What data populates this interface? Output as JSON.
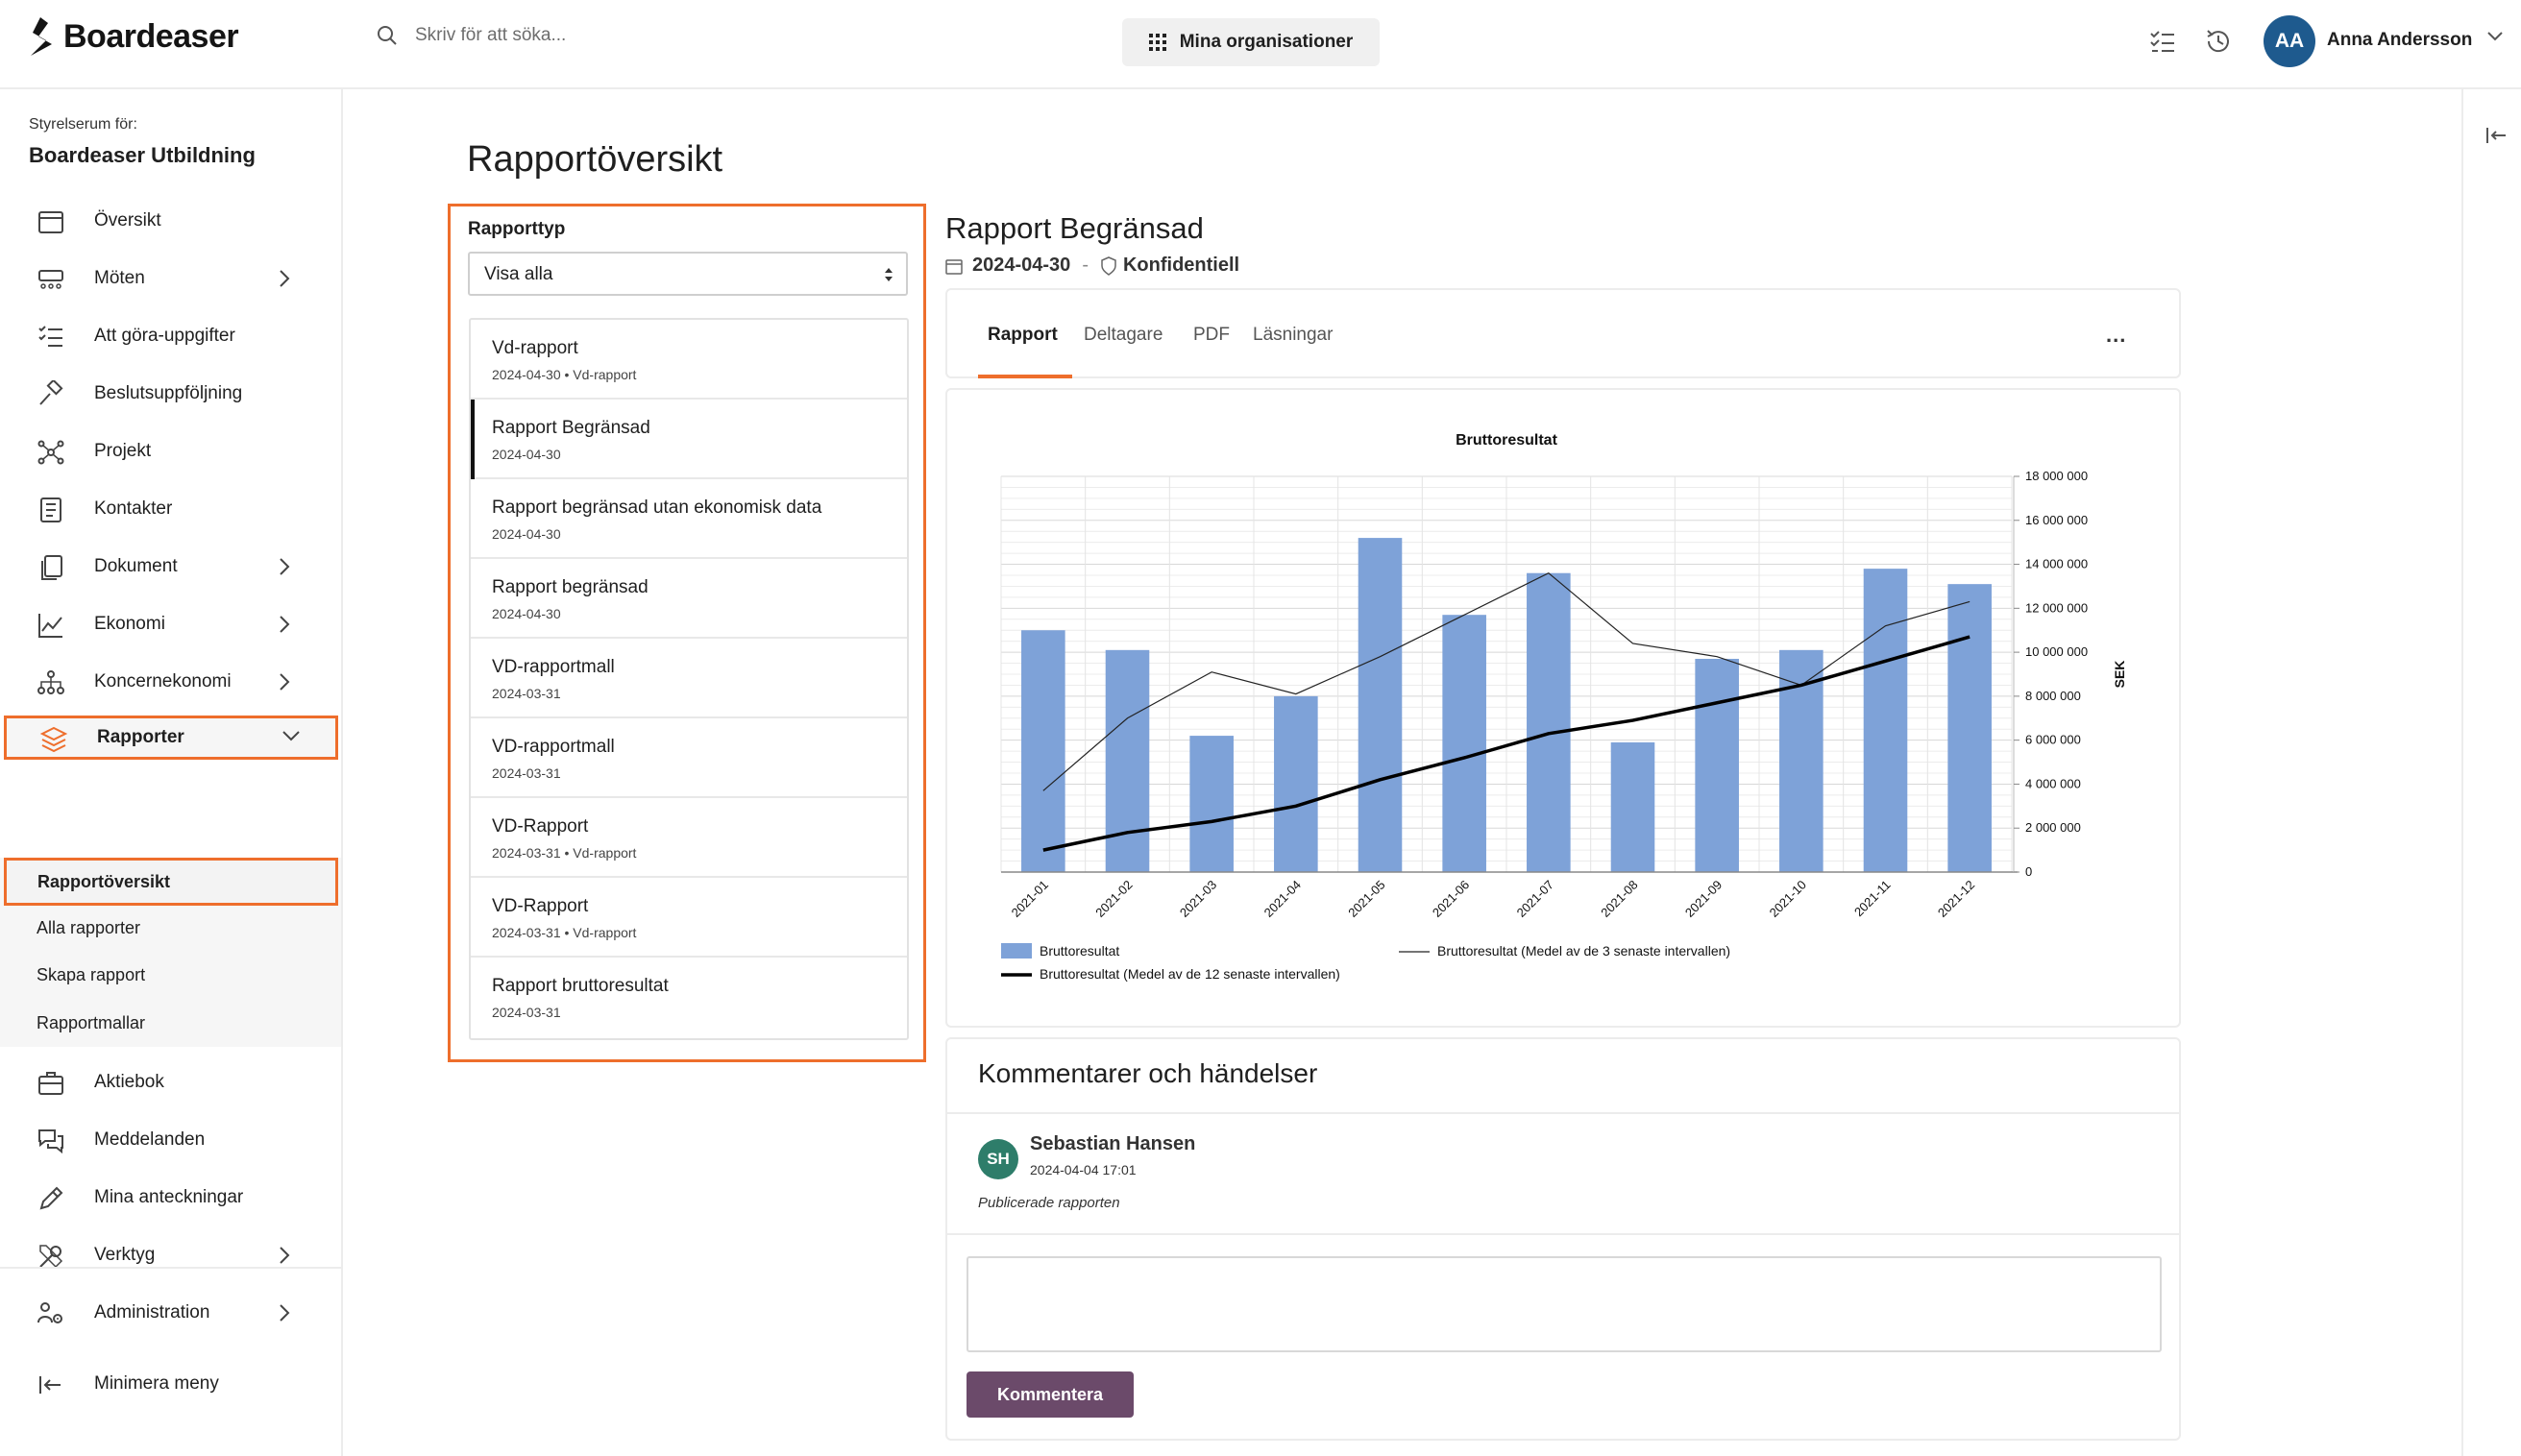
{
  "app": {
    "name": "Boardeaser"
  },
  "search": {
    "placeholder": "Skriv för att söka..."
  },
  "header": {
    "org_button": "Mina organisationer",
    "user_initials": "AA",
    "user_name": "Anna Andersson"
  },
  "sidebar": {
    "caption": "Styrelserum för:",
    "org_name": "Boardeaser Utbildning",
    "items": [
      {
        "label": "Översikt",
        "icon": "calendar-icon"
      },
      {
        "label": "Möten",
        "icon": "meeting-icon",
        "has_children": true
      },
      {
        "label": "Att göra-uppgifter",
        "icon": "checklist-icon"
      },
      {
        "label": "Beslutsuppföljning",
        "icon": "gavel-icon"
      },
      {
        "label": "Projekt",
        "icon": "network-icon"
      },
      {
        "label": "Kontakter",
        "icon": "contacts-icon"
      },
      {
        "label": "Dokument",
        "icon": "documents-icon",
        "has_children": true
      },
      {
        "label": "Ekonomi",
        "icon": "line-chart-icon",
        "has_children": true
      },
      {
        "label": "Koncernekonomi",
        "icon": "org-chart-icon",
        "has_children": true
      },
      {
        "label": "Rapporter",
        "icon": "layers-icon",
        "expanded": true,
        "active": true
      },
      {
        "label": "Aktiebok",
        "icon": "briefcase-icon"
      },
      {
        "label": "Meddelanden",
        "icon": "chat-icon"
      },
      {
        "label": "Mina anteckningar",
        "icon": "pencil-icon"
      },
      {
        "label": "Verktyg",
        "icon": "tools-icon",
        "has_children": true
      },
      {
        "label": "Administration",
        "icon": "users-gear-icon",
        "has_children": true
      }
    ],
    "sub_items": [
      "Rapportöversikt",
      "Alla rapporter",
      "Skapa rapport",
      "Rapportmallar"
    ],
    "minimize": "Minimera meny"
  },
  "page": {
    "title": "Rapportöversikt"
  },
  "report_filter": {
    "label": "Rapporttyp",
    "selected": "Visa alla"
  },
  "reports": [
    {
      "title": "Vd-rapport",
      "meta": "2024-04-30 • Vd-rapport"
    },
    {
      "title": "Rapport Begränsad",
      "meta": "2024-04-30",
      "active": true
    },
    {
      "title": "Rapport begränsad utan ekonomisk data",
      "meta": "2024-04-30"
    },
    {
      "title": "Rapport begränsad",
      "meta": "2024-04-30"
    },
    {
      "title": "VD-rapportmall",
      "meta": "2024-03-31"
    },
    {
      "title": "VD-rapportmall",
      "meta": "2024-03-31"
    },
    {
      "title": "VD-Rapport",
      "meta": "2024-03-31 • Vd-rapport"
    },
    {
      "title": "VD-Rapport",
      "meta": "2024-03-31 • Vd-rapport"
    },
    {
      "title": "Rapport bruttoresultat",
      "meta": "2024-03-31"
    }
  ],
  "detail": {
    "title": "Rapport Begränsad",
    "date": "2024-04-30",
    "separator": "-",
    "confidentiality": "Konfidentiell",
    "tabs": [
      "Rapport",
      "Deltagare",
      "PDF",
      "Läsningar"
    ],
    "active_tab": "Rapport",
    "more": "..."
  },
  "chart_data": {
    "type": "bar",
    "title": "Bruttoresultat",
    "ylabel": "SEK",
    "xlabel": "",
    "y_axis_position": "right",
    "ylim": [
      0,
      18000000
    ],
    "yticks": [
      "0",
      "2 000 000",
      "4 000 000",
      "6 000 000",
      "8 000 000",
      "10 000 000",
      "12 000 000",
      "14 000 000",
      "16 000 000",
      "18 000 000"
    ],
    "categories": [
      "2021-01",
      "2021-02",
      "2021-03",
      "2021-04",
      "2021-05",
      "2021-06",
      "2021-07",
      "2021-08",
      "2021-09",
      "2021-10",
      "2021-11",
      "2021-12"
    ],
    "grid": true,
    "legend_position": "bottom-left",
    "series": [
      {
        "name": "Bruttoresultat",
        "kind": "bar",
        "color": "#7ea2d8",
        "values": [
          11000000,
          10100000,
          6200000,
          8000000,
          15200000,
          11700000,
          13600000,
          5900000,
          9700000,
          10100000,
          13800000,
          13100000
        ]
      },
      {
        "name": "Bruttoresultat (Medel av de 3 senaste intervallen)",
        "kind": "line",
        "color": "#222222",
        "width": "thin",
        "values": [
          3700000,
          7000000,
          9100000,
          8100000,
          9800000,
          11700000,
          13600000,
          10400000,
          9800000,
          8500000,
          11200000,
          12300000
        ]
      },
      {
        "name": "Bruttoresultat (Medel av de 12 senaste intervallen)",
        "kind": "line",
        "color": "#000000",
        "width": "thick",
        "values": [
          1000000,
          1800000,
          2300000,
          3000000,
          4200000,
          5200000,
          6300000,
          6900000,
          7700000,
          8500000,
          9600000,
          10700000
        ]
      }
    ]
  },
  "comments": {
    "title": "Kommentarer och händelser",
    "author_initials": "SH",
    "author": "Sebastian Hansen",
    "timestamp": "2024-04-04 17:01",
    "text": "Publicerade rapporten",
    "button": "Kommentera"
  },
  "colors": {
    "accent": "#ee6e2c",
    "button": "#6b4a6a",
    "avatar_user": "#1e5a8e",
    "avatar_comment": "#2e7d6a"
  }
}
